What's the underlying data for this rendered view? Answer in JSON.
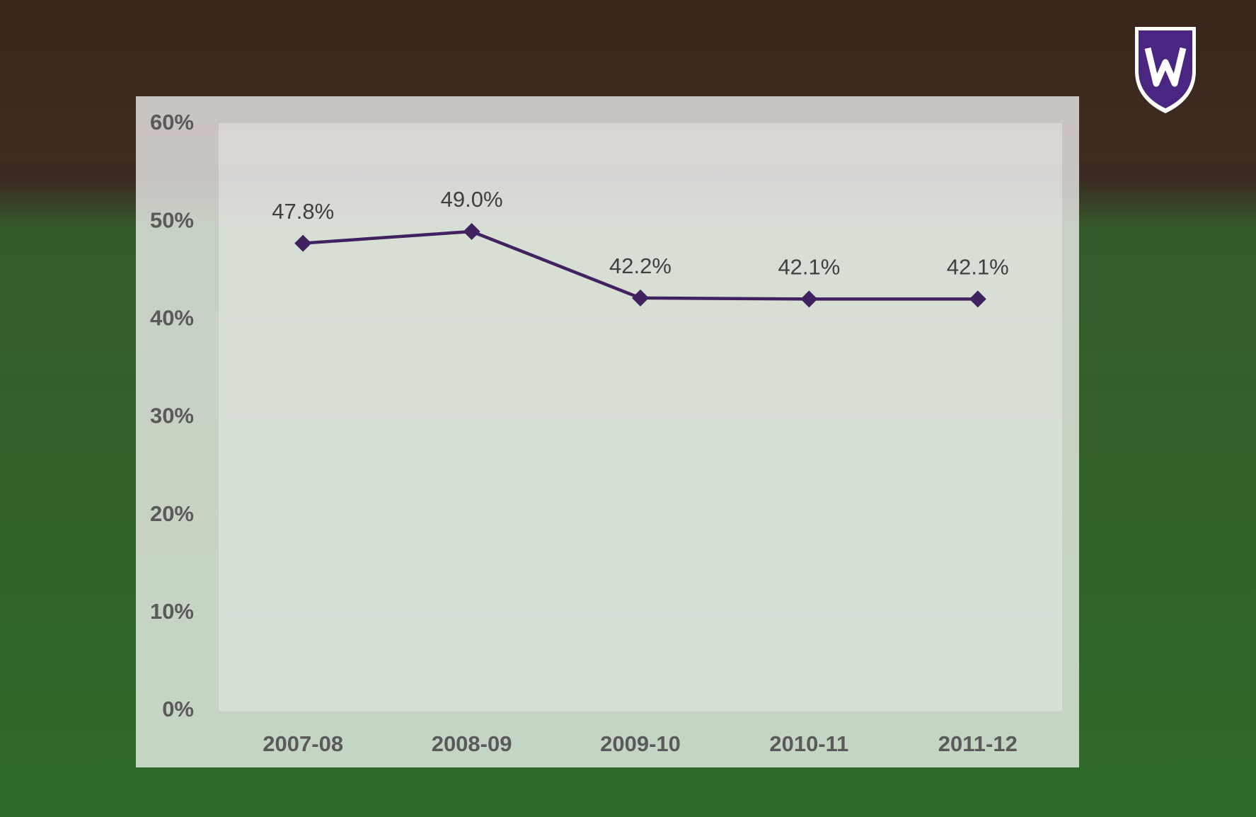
{
  "chart_data": {
    "type": "line",
    "categories": [
      "2007-08",
      "2008-09",
      "2009-10",
      "2010-11",
      "2011-12"
    ],
    "series": [
      {
        "color": "#41215f",
        "values": [
          47.8,
          49.0,
          42.2,
          42.1,
          42.1
        ],
        "value_labels": [
          "47.8%",
          "49.0%",
          "42.2%",
          "42.1%",
          "42.1%"
        ]
      }
    ],
    "ylim": [
      0,
      60
    ],
    "yticks": [
      {
        "value": 0,
        "label": "0%"
      },
      {
        "value": 10,
        "label": "10%"
      },
      {
        "value": 20,
        "label": "20%"
      },
      {
        "value": 30,
        "label": "30%"
      },
      {
        "value": 40,
        "label": "40%"
      },
      {
        "value": 50,
        "label": "50%"
      },
      {
        "value": 60,
        "label": "60%"
      }
    ],
    "grid": true
  }
}
